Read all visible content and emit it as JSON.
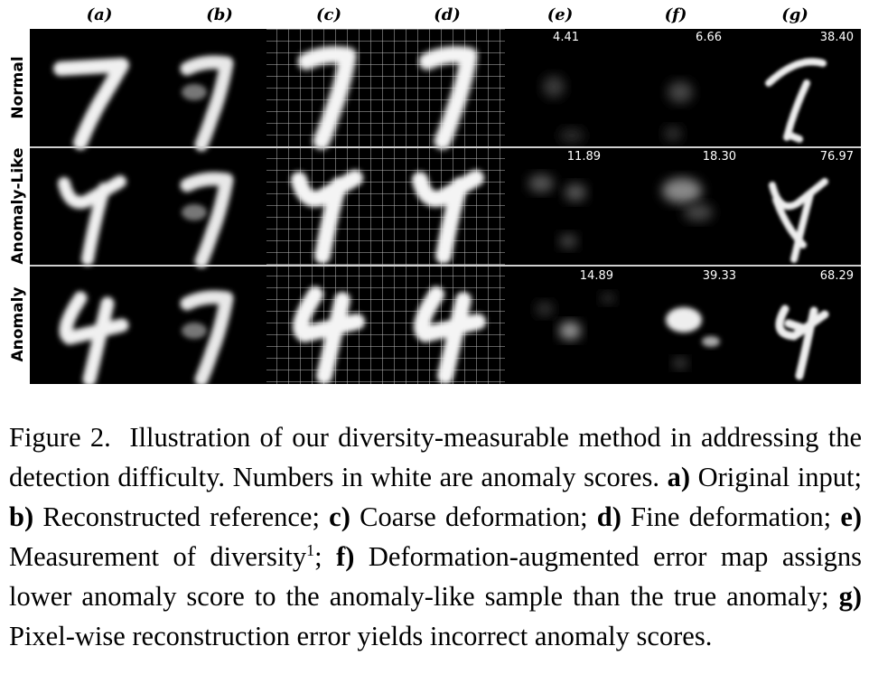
{
  "figure": {
    "columns": [
      "(a)",
      "(b)",
      "(c)",
      "(d)",
      "(e)",
      "(f)",
      "(g)"
    ],
    "rows": [
      {
        "label": "Normal",
        "scores": {
          "e": "4.41",
          "f": "6.66",
          "g": "38.40"
        }
      },
      {
        "label": "Anomaly-Like",
        "scores": {
          "e": "11.89",
          "f": "18.30",
          "g": "76.97"
        }
      },
      {
        "label": "Anomaly",
        "scores": {
          "e": "14.89",
          "f": "39.33",
          "g": "68.29"
        }
      }
    ]
  },
  "caption": {
    "prefix": "Figure 2.",
    "intro": "Illustration of our diversity-measurable method in addressing the detection difficulty. Numbers in white are anomaly scores.",
    "items": [
      {
        "key": "a)",
        "text": "Original input;"
      },
      {
        "key": "b)",
        "text": "Reconstructed reference;"
      },
      {
        "key": "c)",
        "text": "Coarse deformation;"
      },
      {
        "key": "d)",
        "text": "Fine deformation;"
      },
      {
        "key": "e)",
        "text": "Measurement of diversity"
      },
      {
        "key": "f)",
        "text": "Deformation-augmented error map assigns lower anomaly score to the anomaly-like sample than the true anomaly;"
      },
      {
        "key": "g)",
        "text": "Pixel-wise reconstruction error yields incorrect anomaly scores."
      }
    ],
    "footnote_mark": "1",
    "footnote_after": ";"
  }
}
